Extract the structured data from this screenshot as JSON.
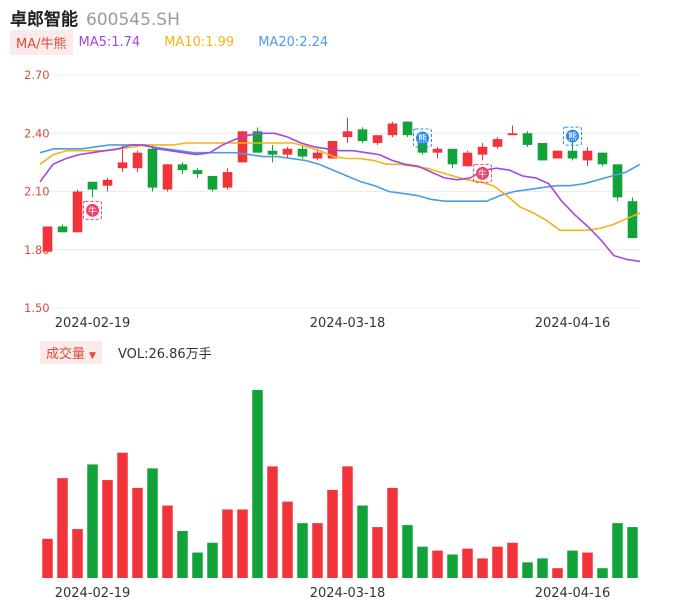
{
  "header": {
    "name": "卓郎智能",
    "code": "600545.SH"
  },
  "ma_legend": {
    "mode_label": "MA/牛熊",
    "ma5": "MA5:1.74",
    "ma10": "MA10:1.99",
    "ma20": "MA20:2.24"
  },
  "volume_legend": {
    "label": "成交量",
    "caret": "▼",
    "vol": "VOL:26.86万手"
  },
  "colors": {
    "up": "#f2333a",
    "down": "#12a23a",
    "ma5": "#a447e0",
    "ma10": "#f2b418",
    "ma20": "#4e9be8",
    "axis_text": "#e04a3a",
    "grid": "#ececec"
  },
  "markers": [
    {
      "index": 3,
      "text": "牛",
      "color": "#f0436a",
      "icon": "bull-marker"
    },
    {
      "index": 25,
      "text": "熊",
      "color": "#2a8ce8",
      "icon": "bear-marker"
    },
    {
      "index": 29,
      "text": "牛",
      "color": "#f0436a",
      "icon": "bull-marker"
    },
    {
      "index": 35,
      "text": "熊",
      "color": "#2a8ce8",
      "icon": "bear-marker"
    }
  ],
  "chart_data": [
    {
      "type": "candlestick",
      "title": "",
      "y_ticks": [
        "2.70",
        "2.40",
        "2.10",
        "1.80",
        "1.50"
      ],
      "ylim": [
        1.5,
        2.7
      ],
      "x_ticks": [
        {
          "index": 3,
          "label": "2024-02-19"
        },
        {
          "index": 20,
          "label": "2024-03-18"
        },
        {
          "index": 35,
          "label": "2024-04-16"
        }
      ],
      "candles": [
        {
          "o": 1.79,
          "h": 1.92,
          "l": 1.79,
          "c": 1.92
        },
        {
          "o": 1.92,
          "h": 1.93,
          "l": 1.9,
          "c": 1.89
        },
        {
          "o": 1.89,
          "h": 2.11,
          "l": 1.89,
          "c": 2.1
        },
        {
          "o": 2.15,
          "h": 2.15,
          "l": 2.07,
          "c": 2.11
        },
        {
          "o": 2.13,
          "h": 2.17,
          "l": 2.1,
          "c": 2.16
        },
        {
          "o": 2.22,
          "h": 2.34,
          "l": 2.2,
          "c": 2.25
        },
        {
          "o": 2.22,
          "h": 2.31,
          "l": 2.2,
          "c": 2.3
        },
        {
          "o": 2.32,
          "h": 2.34,
          "l": 2.1,
          "c": 2.12
        },
        {
          "o": 2.11,
          "h": 2.24,
          "l": 2.1,
          "c": 2.24
        },
        {
          "o": 2.24,
          "h": 2.25,
          "l": 2.19,
          "c": 2.21
        },
        {
          "o": 2.21,
          "h": 2.22,
          "l": 2.17,
          "c": 2.19
        },
        {
          "o": 2.18,
          "h": 2.18,
          "l": 2.1,
          "c": 2.11
        },
        {
          "o": 2.12,
          "h": 2.22,
          "l": 2.11,
          "c": 2.2
        },
        {
          "o": 2.25,
          "h": 2.41,
          "l": 2.25,
          "c": 2.41
        },
        {
          "o": 2.41,
          "h": 2.43,
          "l": 2.3,
          "c": 2.3
        },
        {
          "o": 2.31,
          "h": 2.34,
          "l": 2.25,
          "c": 2.29
        },
        {
          "o": 2.29,
          "h": 2.33,
          "l": 2.27,
          "c": 2.32
        },
        {
          "o": 2.32,
          "h": 2.34,
          "l": 2.27,
          "c": 2.28
        },
        {
          "o": 2.27,
          "h": 2.32,
          "l": 2.26,
          "c": 2.3
        },
        {
          "o": 2.27,
          "h": 2.36,
          "l": 2.27,
          "c": 2.36
        },
        {
          "o": 2.38,
          "h": 2.48,
          "l": 2.35,
          "c": 2.41
        },
        {
          "o": 2.42,
          "h": 2.43,
          "l": 2.35,
          "c": 2.36
        },
        {
          "o": 2.35,
          "h": 2.39,
          "l": 2.34,
          "c": 2.39
        },
        {
          "o": 2.39,
          "h": 2.46,
          "l": 2.38,
          "c": 2.45
        },
        {
          "o": 2.46,
          "h": 2.46,
          "l": 2.38,
          "c": 2.39
        },
        {
          "o": 2.36,
          "h": 2.36,
          "l": 2.29,
          "c": 2.3
        },
        {
          "o": 2.3,
          "h": 2.33,
          "l": 2.27,
          "c": 2.32
        },
        {
          "o": 2.32,
          "h": 2.32,
          "l": 2.22,
          "c": 2.24
        },
        {
          "o": 2.23,
          "h": 2.31,
          "l": 2.23,
          "c": 2.3
        },
        {
          "o": 2.29,
          "h": 2.35,
          "l": 2.26,
          "c": 2.33
        },
        {
          "o": 2.33,
          "h": 2.38,
          "l": 2.32,
          "c": 2.37
        },
        {
          "o": 2.39,
          "h": 2.44,
          "l": 2.39,
          "c": 2.4
        },
        {
          "o": 2.4,
          "h": 2.41,
          "l": 2.33,
          "c": 2.34
        },
        {
          "o": 2.35,
          "h": 2.35,
          "l": 2.26,
          "c": 2.26
        },
        {
          "o": 2.27,
          "h": 2.31,
          "l": 2.27,
          "c": 2.31
        },
        {
          "o": 2.31,
          "h": 2.37,
          "l": 2.26,
          "c": 2.27
        },
        {
          "o": 2.26,
          "h": 2.33,
          "l": 2.23,
          "c": 2.31
        },
        {
          "o": 2.3,
          "h": 2.3,
          "l": 2.23,
          "c": 2.24
        },
        {
          "o": 2.24,
          "h": 2.24,
          "l": 2.05,
          "c": 2.07
        },
        {
          "o": 2.05,
          "h": 2.07,
          "l": 1.86,
          "c": 1.86
        }
      ],
      "ma5": [
        2.15,
        2.24,
        2.27,
        2.29,
        2.3,
        2.31,
        2.32,
        2.34,
        2.34,
        2.32,
        2.31,
        2.3,
        2.29,
        2.3,
        2.34,
        2.37,
        2.39,
        2.4,
        2.4,
        2.38,
        2.35,
        2.33,
        2.32,
        2.31,
        2.31,
        2.3,
        2.29,
        2.26,
        2.24,
        2.23,
        2.2,
        2.17,
        2.16,
        2.17,
        2.21,
        2.22,
        2.21,
        2.18,
        2.17,
        2.14,
        2.05,
        1.98,
        1.92,
        1.85,
        1.77,
        1.75,
        1.74
      ],
      "ma10": [
        2.24,
        2.29,
        2.31,
        2.31,
        2.31,
        2.31,
        2.32,
        2.33,
        2.34,
        2.34,
        2.34,
        2.35,
        2.35,
        2.35,
        2.35,
        2.35,
        2.35,
        2.35,
        2.35,
        2.35,
        2.33,
        2.31,
        2.28,
        2.27,
        2.27,
        2.26,
        2.24,
        2.24,
        2.23,
        2.22,
        2.2,
        2.18,
        2.16,
        2.15,
        2.13,
        2.08,
        2.02,
        1.99,
        1.95,
        1.9,
        1.9,
        1.9,
        1.91,
        1.93,
        1.96,
        1.99
      ],
      "ma20": [
        2.3,
        2.32,
        2.32,
        2.32,
        2.33,
        2.34,
        2.34,
        2.34,
        2.33,
        2.32,
        2.31,
        2.3,
        2.3,
        2.3,
        2.3,
        2.29,
        2.28,
        2.28,
        2.27,
        2.26,
        2.24,
        2.21,
        2.18,
        2.15,
        2.13,
        2.1,
        2.09,
        2.08,
        2.06,
        2.05,
        2.05,
        2.05,
        2.05,
        2.08,
        2.1,
        2.11,
        2.12,
        2.13,
        2.13,
        2.14,
        2.16,
        2.18,
        2.2,
        2.24
      ]
    },
    {
      "type": "bar",
      "title": "",
      "x_ticks": [
        {
          "index": 3,
          "label": "2024-02-19"
        },
        {
          "index": 20,
          "label": "2024-03-18"
        },
        {
          "index": 35,
          "label": "2024-04-16"
        }
      ],
      "volumes": [
        {
          "v": 20,
          "up": true
        },
        {
          "v": 51,
          "up": true
        },
        {
          "v": 25,
          "up": true
        },
        {
          "v": 58,
          "up": false
        },
        {
          "v": 50,
          "up": true
        },
        {
          "v": 64,
          "up": true
        },
        {
          "v": 46,
          "up": true
        },
        {
          "v": 56,
          "up": false
        },
        {
          "v": 37,
          "up": true
        },
        {
          "v": 24,
          "up": false
        },
        {
          "v": 13,
          "up": false
        },
        {
          "v": 18,
          "up": false
        },
        {
          "v": 35,
          "up": true
        },
        {
          "v": 35,
          "up": true
        },
        {
          "v": 96,
          "up": false
        },
        {
          "v": 57,
          "up": true
        },
        {
          "v": 39,
          "up": true
        },
        {
          "v": 28,
          "up": false
        },
        {
          "v": 28,
          "up": true
        },
        {
          "v": 45,
          "up": true
        },
        {
          "v": 57,
          "up": true
        },
        {
          "v": 37,
          "up": false
        },
        {
          "v": 26,
          "up": true
        },
        {
          "v": 46,
          "up": true
        },
        {
          "v": 27,
          "up": false
        },
        {
          "v": 16,
          "up": false
        },
        {
          "v": 14,
          "up": true
        },
        {
          "v": 12,
          "up": false
        },
        {
          "v": 15,
          "up": true
        },
        {
          "v": 10,
          "up": true
        },
        {
          "v": 16,
          "up": true
        },
        {
          "v": 18,
          "up": true
        },
        {
          "v": 8,
          "up": false
        },
        {
          "v": 10,
          "up": false
        },
        {
          "v": 5,
          "up": true
        },
        {
          "v": 14,
          "up": false
        },
        {
          "v": 13,
          "up": true
        },
        {
          "v": 5,
          "up": false
        },
        {
          "v": 28,
          "up": false
        },
        {
          "v": 26,
          "up": false
        }
      ]
    }
  ]
}
